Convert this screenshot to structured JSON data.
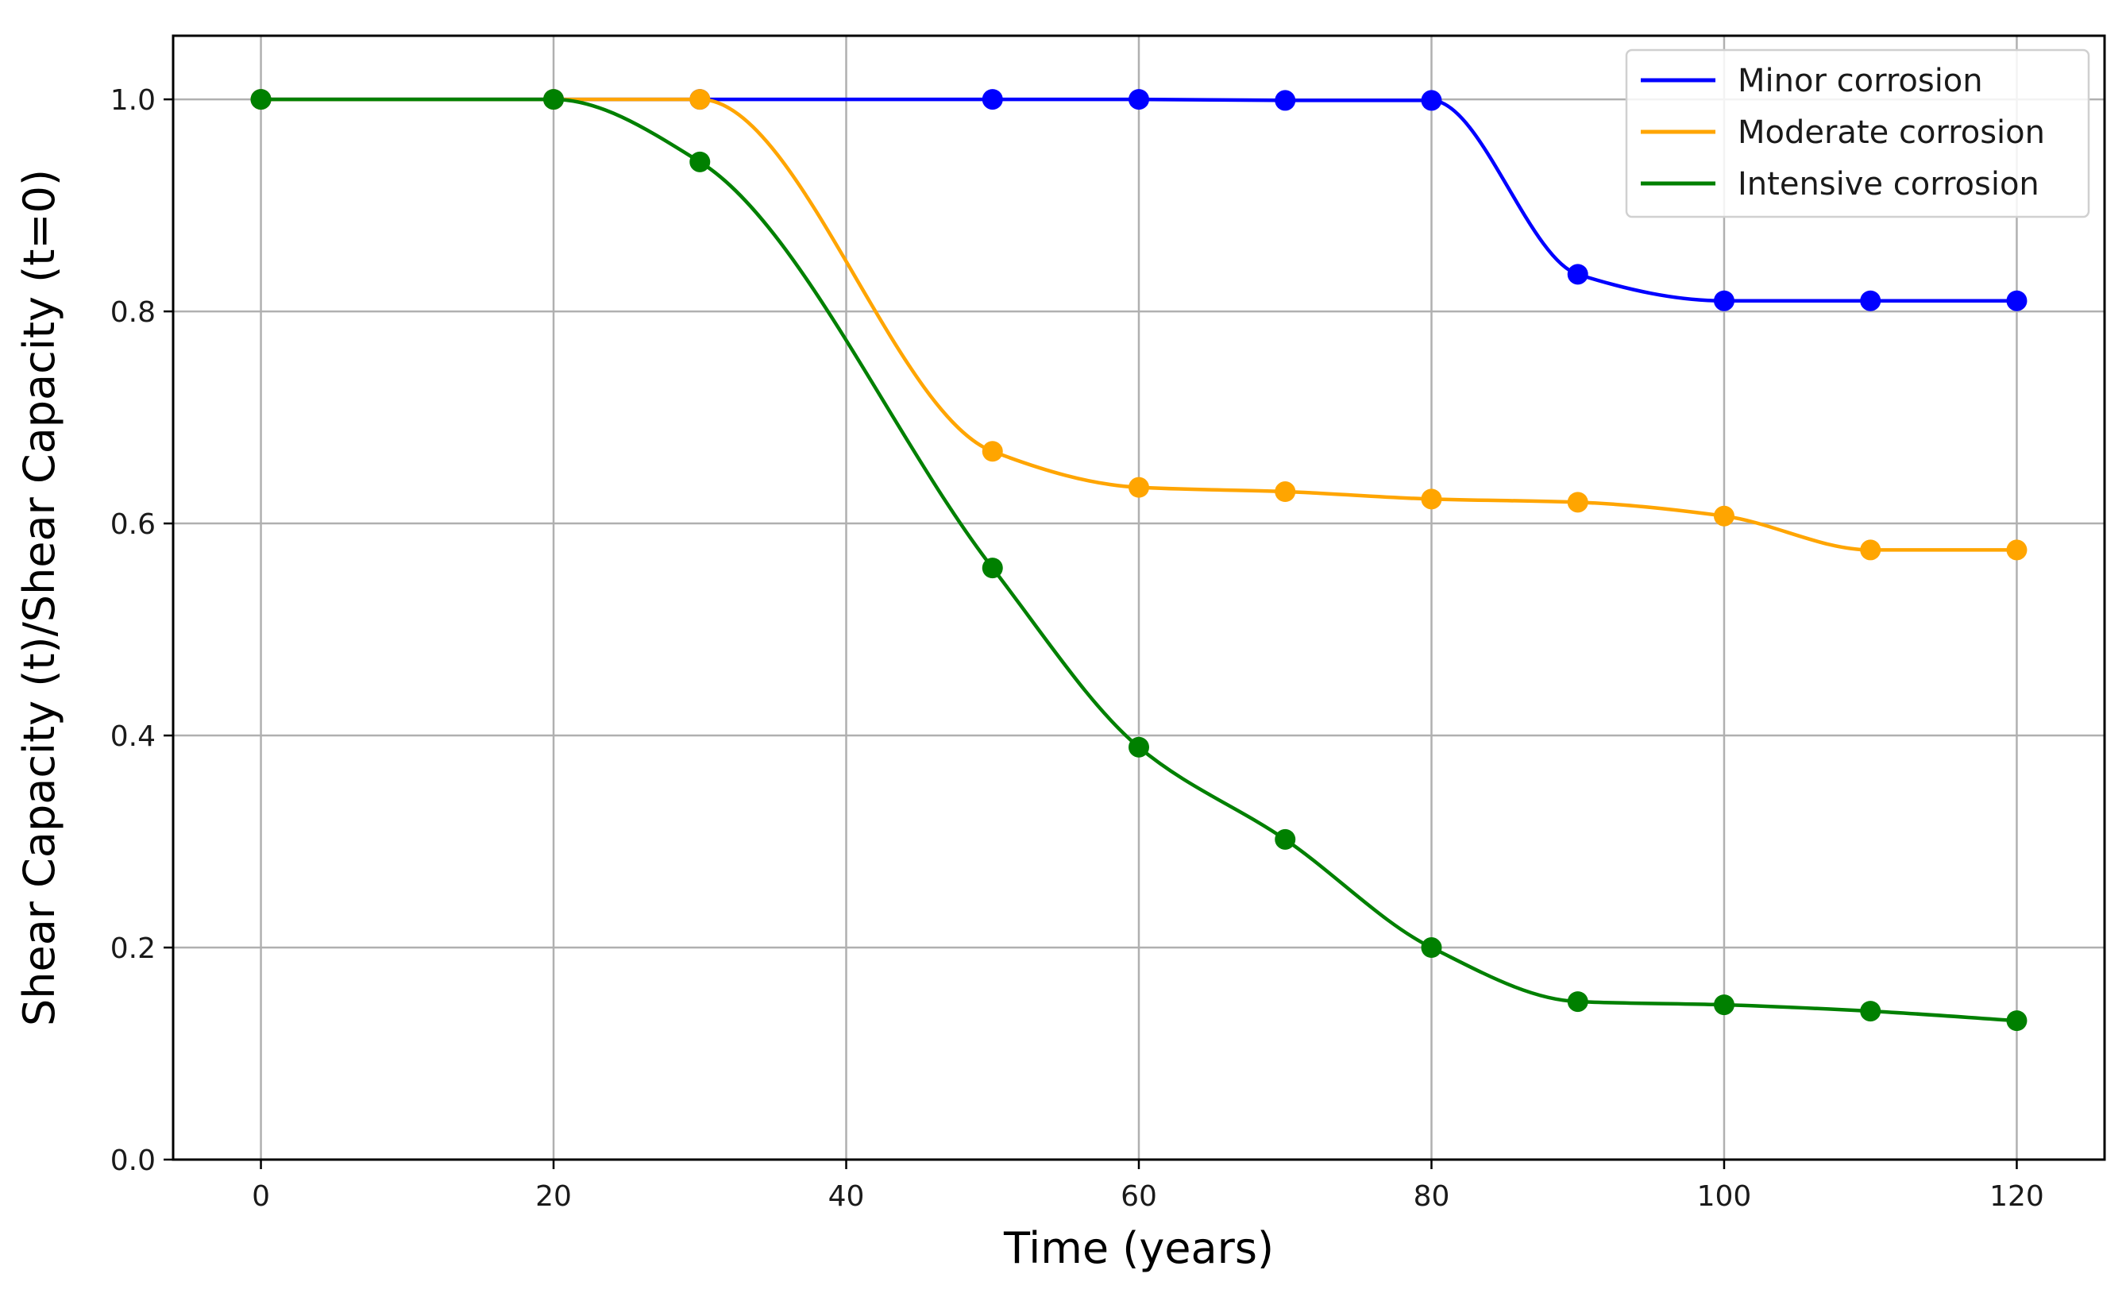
{
  "chart_data": {
    "type": "line",
    "title": "",
    "xlabel": "Time (years)",
    "ylabel": "Shear Capacity (t)/Shear Capacity (t=0)",
    "xlim": [
      -6,
      126
    ],
    "ylim": [
      0.0,
      1.06
    ],
    "xticks": [
      0,
      20,
      40,
      60,
      80,
      100,
      120
    ],
    "xtick_labels": [
      "0",
      "20",
      "40",
      "60",
      "80",
      "100",
      "120"
    ],
    "yticks": [
      0.0,
      0.2,
      0.4,
      0.6,
      0.8,
      1.0
    ],
    "ytick_labels": [
      "0.0",
      "0.2",
      "0.4",
      "0.6",
      "0.8",
      "1.0"
    ],
    "grid": true,
    "legend_position": "top-right",
    "series": [
      {
        "name": "Minor corrosion",
        "color": "#0000ff",
        "x": [
          0,
          20,
          30,
          50,
          60,
          70,
          80,
          90,
          100,
          110,
          120
        ],
        "y": [
          1.0,
          1.0,
          1.0,
          1.0,
          1.0,
          0.999,
          0.999,
          0.835,
          0.81,
          0.81,
          0.81
        ]
      },
      {
        "name": "Moderate corrosion",
        "color": "#ffa500",
        "x": [
          0,
          20,
          30,
          50,
          60,
          70,
          80,
          90,
          100,
          110,
          120
        ],
        "y": [
          1.0,
          1.0,
          1.0,
          0.668,
          0.634,
          0.63,
          0.623,
          0.62,
          0.607,
          0.575,
          0.575
        ]
      },
      {
        "name": "Intensive corrosion",
        "color": "#008000",
        "x": [
          0,
          20,
          30,
          50,
          60,
          70,
          80,
          90,
          100,
          110,
          120
        ],
        "y": [
          1.0,
          1.0,
          0.941,
          0.558,
          0.389,
          0.302,
          0.2,
          0.149,
          0.146,
          0.14,
          0.131
        ]
      }
    ]
  }
}
